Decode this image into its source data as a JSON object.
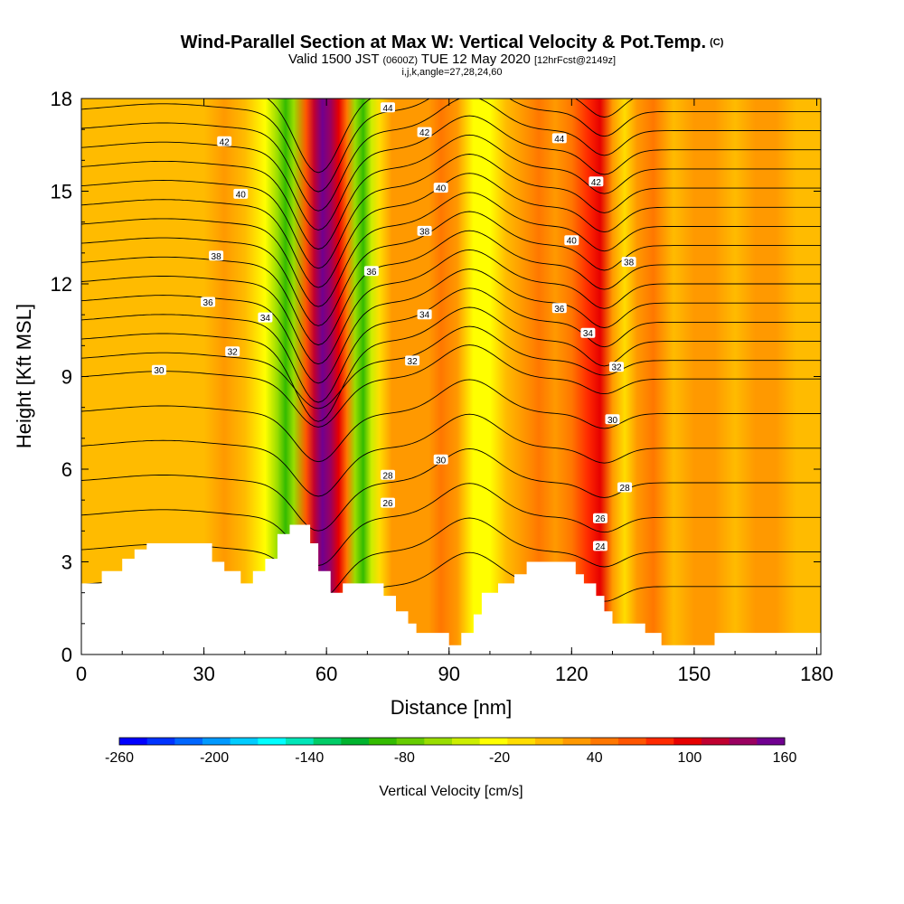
{
  "header": {
    "title": "Wind-Parallel Section at Max W: Vertical Velocity & Pot.Temp.",
    "copyright": "(C)",
    "valid_prefix": "Valid 1500 JST",
    "utc": "(0600Z)",
    "valid_date": "TUE 12 May 2020",
    "forecast": "[12hrFcst@2149z]",
    "indices": "i,j,k,angle=27,28,24,60"
  },
  "chart_data": {
    "type": "heatmap",
    "title": "Wind-Parallel Section at Max W: Vertical Velocity & Pot.Temp.",
    "xlabel": "Distance [nm]",
    "ylabel": "Height [Kft MSL]",
    "xlim": [
      0,
      181
    ],
    "ylim": [
      0,
      18
    ],
    "x_ticks": [
      0,
      30,
      60,
      90,
      120,
      150,
      180
    ],
    "y_ticks": [
      0,
      3,
      6,
      9,
      12,
      15,
      18
    ],
    "colorbar": {
      "label": "Vertical Velocity [cm/s]",
      "tick_labels": [
        "-260",
        "-200",
        "-140",
        "-80",
        "-20",
        "40",
        "100",
        "160"
      ],
      "tick_values": [
        -260,
        -200,
        -140,
        -80,
        -20,
        40,
        100,
        160
      ],
      "min": -260,
      "max": 160,
      "colors": [
        "#0000ff",
        "#0033ff",
        "#0066ff",
        "#0099ff",
        "#00ccff",
        "#00ffff",
        "#00e6b8",
        "#00cc66",
        "#00b32e",
        "#33bb00",
        "#66cc00",
        "#99dd00",
        "#ccee00",
        "#ffff00",
        "#ffdd00",
        "#ffbb00",
        "#ff9900",
        "#ff7700",
        "#ff5500",
        "#ff2a00",
        "#e60000",
        "#c00030",
        "#9a0060",
        "#700090"
      ]
    },
    "velocity_columns": [
      {
        "x": 0,
        "w": 5
      },
      {
        "x": 5,
        "w": 10
      },
      {
        "x": 10,
        "w": 5
      },
      {
        "x": 15,
        "w": 15
      },
      {
        "x": 20,
        "w": 10
      },
      {
        "x": 25,
        "w": 5
      },
      {
        "x": 30,
        "w": 15
      },
      {
        "x": 35,
        "w": 30
      },
      {
        "x": 40,
        "w": 10
      },
      {
        "x": 45,
        "w": -30
      },
      {
        "x": 48,
        "w": -60
      },
      {
        "x": 50,
        "w": -90
      },
      {
        "x": 52,
        "w": -60
      },
      {
        "x": 55,
        "w": 60
      },
      {
        "x": 57,
        "w": 110
      },
      {
        "x": 59,
        "w": 150
      },
      {
        "x": 61,
        "w": 140
      },
      {
        "x": 63,
        "w": 90
      },
      {
        "x": 65,
        "w": 40
      },
      {
        "x": 67,
        "w": -60
      },
      {
        "x": 69,
        "w": -90
      },
      {
        "x": 71,
        "w": -40
      },
      {
        "x": 73,
        "w": 0
      },
      {
        "x": 76,
        "w": 20
      },
      {
        "x": 80,
        "w": 30
      },
      {
        "x": 85,
        "w": 20
      },
      {
        "x": 88,
        "w": 40
      },
      {
        "x": 92,
        "w": 30
      },
      {
        "x": 96,
        "w": -20
      },
      {
        "x": 100,
        "w": -30
      },
      {
        "x": 104,
        "w": 10
      },
      {
        "x": 108,
        "w": 30
      },
      {
        "x": 112,
        "w": 50
      },
      {
        "x": 116,
        "w": 30
      },
      {
        "x": 120,
        "w": 40
      },
      {
        "x": 124,
        "w": 80
      },
      {
        "x": 127,
        "w": 90
      },
      {
        "x": 130,
        "w": 30
      },
      {
        "x": 133,
        "w": -10
      },
      {
        "x": 136,
        "w": 20
      },
      {
        "x": 140,
        "w": 40
      },
      {
        "x": 145,
        "w": 10
      },
      {
        "x": 150,
        "w": 30
      },
      {
        "x": 155,
        "w": 20
      },
      {
        "x": 160,
        "w": 10
      },
      {
        "x": 165,
        "w": 30
      },
      {
        "x": 170,
        "w": 20
      },
      {
        "x": 175,
        "w": 5
      },
      {
        "x": 181,
        "w": 10
      }
    ],
    "theta_contours": {
      "levels": [
        24,
        25,
        26,
        27,
        28,
        29,
        30,
        31,
        32,
        33,
        34,
        35,
        36,
        37,
        38,
        39,
        40,
        41,
        42,
        43,
        44,
        45
      ],
      "labeled": [
        {
          "level": "44",
          "x": 75,
          "y": 17.7
        },
        {
          "level": "44",
          "x": 117,
          "y": 16.7
        },
        {
          "level": "42",
          "x": 35,
          "y": 16.6
        },
        {
          "level": "42",
          "x": 84,
          "y": 16.9
        },
        {
          "level": "42",
          "x": 126,
          "y": 15.3
        },
        {
          "level": "40",
          "x": 39,
          "y": 14.9
        },
        {
          "level": "40",
          "x": 88,
          "y": 15.1
        },
        {
          "level": "40",
          "x": 120,
          "y": 13.4
        },
        {
          "level": "38",
          "x": 33,
          "y": 12.9
        },
        {
          "level": "38",
          "x": 84,
          "y": 13.7
        },
        {
          "level": "38",
          "x": 134,
          "y": 12.7
        },
        {
          "level": "36",
          "x": 31,
          "y": 11.4
        },
        {
          "level": "36",
          "x": 71,
          "y": 12.4
        },
        {
          "level": "36",
          "x": 117,
          "y": 11.2
        },
        {
          "level": "34",
          "x": 45,
          "y": 10.9
        },
        {
          "level": "34",
          "x": 84,
          "y": 11.0
        },
        {
          "level": "34",
          "x": 124,
          "y": 10.4
        },
        {
          "level": "32",
          "x": 37,
          "y": 9.8
        },
        {
          "level": "32",
          "x": 81,
          "y": 9.5
        },
        {
          "level": "32",
          "x": 131,
          "y": 9.3
        },
        {
          "level": "30",
          "x": 19,
          "y": 9.2
        },
        {
          "level": "30",
          "x": 88,
          "y": 6.3
        },
        {
          "level": "30",
          "x": 130,
          "y": 7.6
        },
        {
          "level": "28",
          "x": 75,
          "y": 5.8
        },
        {
          "level": "28",
          "x": 133,
          "y": 5.4
        },
        {
          "level": "26",
          "x": 75,
          "y": 4.9
        },
        {
          "level": "26",
          "x": 127,
          "y": 4.4
        },
        {
          "level": "24",
          "x": 127,
          "y": 3.5
        }
      ]
    },
    "terrain": [
      [
        0,
        2.3
      ],
      [
        5,
        2.3
      ],
      [
        5,
        2.7
      ],
      [
        10,
        2.7
      ],
      [
        10,
        3.1
      ],
      [
        13,
        3.1
      ],
      [
        13,
        3.4
      ],
      [
        16,
        3.4
      ],
      [
        16,
        3.6
      ],
      [
        32,
        3.6
      ],
      [
        32,
        3.0
      ],
      [
        35,
        3.0
      ],
      [
        35,
        2.7
      ],
      [
        39,
        2.7
      ],
      [
        39,
        2.3
      ],
      [
        42,
        2.3
      ],
      [
        42,
        2.7
      ],
      [
        45,
        2.7
      ],
      [
        45,
        3.1
      ],
      [
        48,
        3.1
      ],
      [
        48,
        3.9
      ],
      [
        51,
        3.9
      ],
      [
        51,
        4.2
      ],
      [
        56,
        4.2
      ],
      [
        56,
        3.6
      ],
      [
        58,
        3.6
      ],
      [
        58,
        2.7
      ],
      [
        61,
        2.7
      ],
      [
        61,
        2.0
      ],
      [
        64,
        2.0
      ],
      [
        64,
        2.3
      ],
      [
        74,
        2.3
      ],
      [
        74,
        1.9
      ],
      [
        77,
        1.9
      ],
      [
        77,
        1.4
      ],
      [
        80,
        1.4
      ],
      [
        80,
        1.0
      ],
      [
        82,
        1.0
      ],
      [
        82,
        0.7
      ],
      [
        90,
        0.7
      ],
      [
        90,
        0.3
      ],
      [
        93,
        0.3
      ],
      [
        93,
        0.7
      ],
      [
        96,
        0.7
      ],
      [
        96,
        1.3
      ],
      [
        98,
        1.3
      ],
      [
        98,
        2.0
      ],
      [
        102,
        2.0
      ],
      [
        102,
        2.3
      ],
      [
        106,
        2.3
      ],
      [
        106,
        2.6
      ],
      [
        109,
        2.6
      ],
      [
        109,
        3.0
      ],
      [
        121,
        3.0
      ],
      [
        121,
        2.6
      ],
      [
        123,
        2.6
      ],
      [
        123,
        2.3
      ],
      [
        126,
        2.3
      ],
      [
        126,
        1.9
      ],
      [
        128,
        1.9
      ],
      [
        128,
        1.4
      ],
      [
        130,
        1.4
      ],
      [
        130,
        1.0
      ],
      [
        138,
        1.0
      ],
      [
        138,
        0.7
      ],
      [
        142,
        0.7
      ],
      [
        142,
        0.3
      ],
      [
        155,
        0.3
      ],
      [
        155,
        0.7
      ],
      [
        181,
        0.7
      ]
    ]
  }
}
